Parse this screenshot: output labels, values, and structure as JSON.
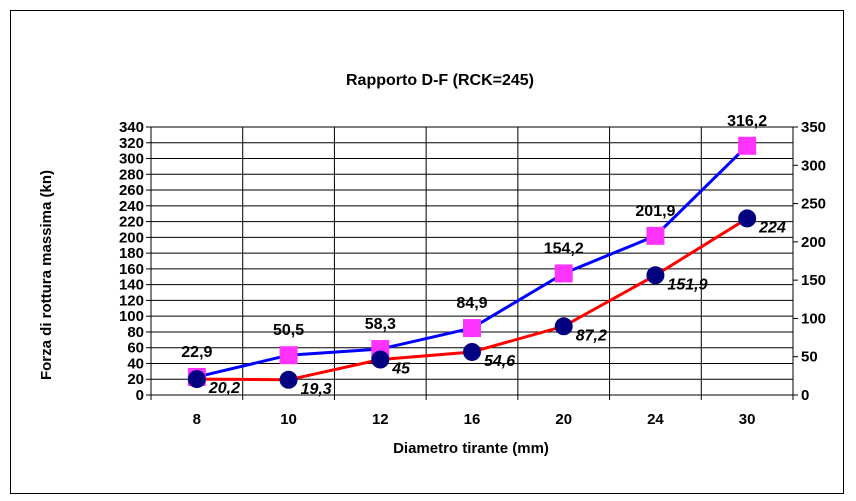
{
  "colors": {
    "series_pink": "#ff33ff",
    "series_blue_line": "#0000ff",
    "series_red_line": "#ff0000",
    "series_navy_marker": "#000080",
    "grid": "#000000"
  },
  "chart_data": {
    "type": "line",
    "title": "Rapporto D-F (RCK=245)",
    "xlabel": "Diametro tirante  (mm)",
    "ylabel": "Forza di rottura massima (kn)",
    "categories": [
      "8",
      "10",
      "12",
      "16",
      "20",
      "24",
      "30"
    ],
    "y_left": {
      "ylim": [
        0,
        340
      ],
      "ticks": [
        0,
        20,
        40,
        60,
        80,
        100,
        120,
        140,
        160,
        180,
        200,
        220,
        240,
        260,
        280,
        300,
        320,
        340
      ]
    },
    "y_right": {
      "ylim": [
        0,
        350
      ],
      "ticks": [
        0,
        50,
        100,
        150,
        200,
        250,
        300,
        350
      ]
    },
    "grid": true,
    "legend": "none",
    "series": [
      {
        "marker": "square",
        "values": [
          22.9,
          50.5,
          58.3,
          84.9,
          154.2,
          201.9,
          316.2
        ],
        "labels": [
          "22,9",
          "50,5",
          "58,3",
          "84,9",
          "154,2",
          "201,9",
          "316,2"
        ]
      },
      {
        "marker": "circle",
        "values": [
          20.2,
          19.3,
          45,
          54.6,
          87.2,
          151.9,
          224
        ],
        "labels": [
          "20,2",
          "19,3",
          "45",
          "54,6",
          "87,2",
          "151,9",
          "224"
        ]
      }
    ]
  }
}
